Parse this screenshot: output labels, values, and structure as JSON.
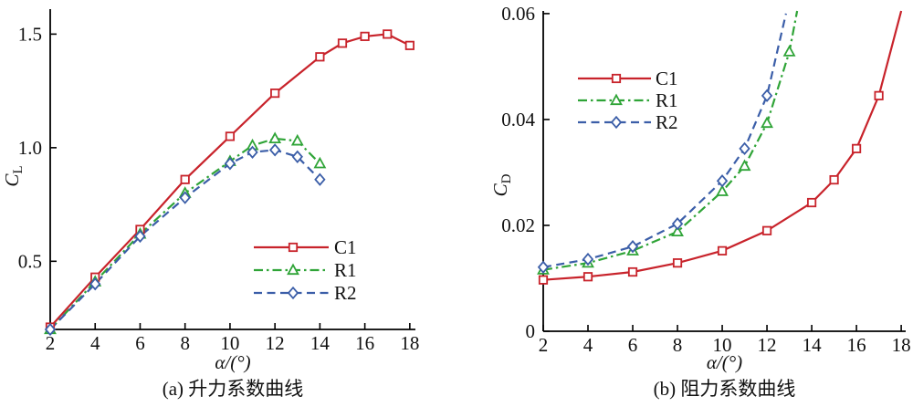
{
  "figure": {
    "background": "#ffffff",
    "axis_color": "#000000",
    "text_color": "#111111"
  },
  "chart_data": [
    {
      "type": "line",
      "panel": "a",
      "caption": "(a) 升力系数曲线",
      "xlabel": "α/(°)",
      "ylabel_main": "C",
      "ylabel_sub": "L",
      "xlim": [
        2,
        18.25
      ],
      "ylim": [
        0.2,
        1.61
      ],
      "xticks": [
        2,
        4,
        6,
        8,
        10,
        12,
        14,
        16,
        18
      ],
      "yticks": [
        0.5,
        1.0,
        1.5
      ],
      "ytick_labels": [
        "0.5",
        "1.0",
        "1.5"
      ],
      "grid": false,
      "legend_position": "inside-center-right",
      "series": [
        {
          "name": "C1",
          "color": "#c8232b",
          "dash": "solid",
          "marker": "square",
          "x": [
            2,
            4,
            6,
            8,
            10,
            12,
            14,
            15,
            16,
            17,
            18
          ],
          "y": [
            0.21,
            0.43,
            0.64,
            0.86,
            1.05,
            1.24,
            1.4,
            1.46,
            1.49,
            1.5,
            1.45
          ],
          "end_no_marker": false
        },
        {
          "name": "R1",
          "color": "#2fa437",
          "dash": "dashdot",
          "marker": "triangle",
          "x": [
            2,
            4,
            6,
            8,
            10,
            11,
            12,
            13,
            14
          ],
          "y": [
            0.2,
            0.41,
            0.62,
            0.8,
            0.94,
            1.01,
            1.04,
            1.03,
            0.93
          ],
          "end_no_marker": false
        },
        {
          "name": "R2",
          "color": "#3b5ea8",
          "dash": "dashed",
          "marker": "diamond",
          "x": [
            2,
            4,
            6,
            8,
            10,
            11,
            12,
            13,
            14
          ],
          "y": [
            0.2,
            0.4,
            0.61,
            0.78,
            0.93,
            0.98,
            0.99,
            0.96,
            0.86
          ],
          "end_no_marker": false
        }
      ]
    },
    {
      "type": "line",
      "panel": "b",
      "caption": "(b) 阻力系数曲线",
      "xlabel": "α/(°)",
      "ylabel_main": "C",
      "ylabel_sub": "D",
      "xlim": [
        2,
        18.2
      ],
      "ylim": [
        0,
        0.0605
      ],
      "xticks": [
        2,
        4,
        6,
        8,
        10,
        12,
        14,
        16,
        18
      ],
      "yticks": [
        0,
        0.02,
        0.04,
        0.06
      ],
      "ytick_labels": [
        "0",
        "0.02",
        "0.04",
        "0.06"
      ],
      "grid": false,
      "legend_position": "inside-top-left",
      "series": [
        {
          "name": "C1",
          "color": "#c8232b",
          "dash": "solid",
          "marker": "square",
          "x": [
            2,
            4,
            6,
            8,
            10,
            12,
            14,
            15,
            16,
            17,
            18
          ],
          "y": [
            0.0097,
            0.0103,
            0.0112,
            0.0129,
            0.0152,
            0.019,
            0.0243,
            0.0286,
            0.0345,
            0.0445,
            0.0605
          ],
          "end_no_marker": true
        },
        {
          "name": "R1",
          "color": "#2fa437",
          "dash": "dashdot",
          "marker": "triangle",
          "x": [
            2,
            4,
            6,
            8,
            10,
            11,
            12,
            13,
            13.35
          ],
          "y": [
            0.0116,
            0.0129,
            0.0152,
            0.0188,
            0.0264,
            0.0312,
            0.0393,
            0.0528,
            0.0605
          ],
          "end_no_marker": true
        },
        {
          "name": "R2",
          "color": "#3b5ea8",
          "dash": "dashed",
          "marker": "diamond",
          "x": [
            2,
            4,
            6,
            8,
            10,
            11,
            12,
            12.85
          ],
          "y": [
            0.0121,
            0.0136,
            0.016,
            0.0203,
            0.0284,
            0.0345,
            0.0445,
            0.06
          ],
          "end_no_marker": true
        }
      ]
    }
  ]
}
